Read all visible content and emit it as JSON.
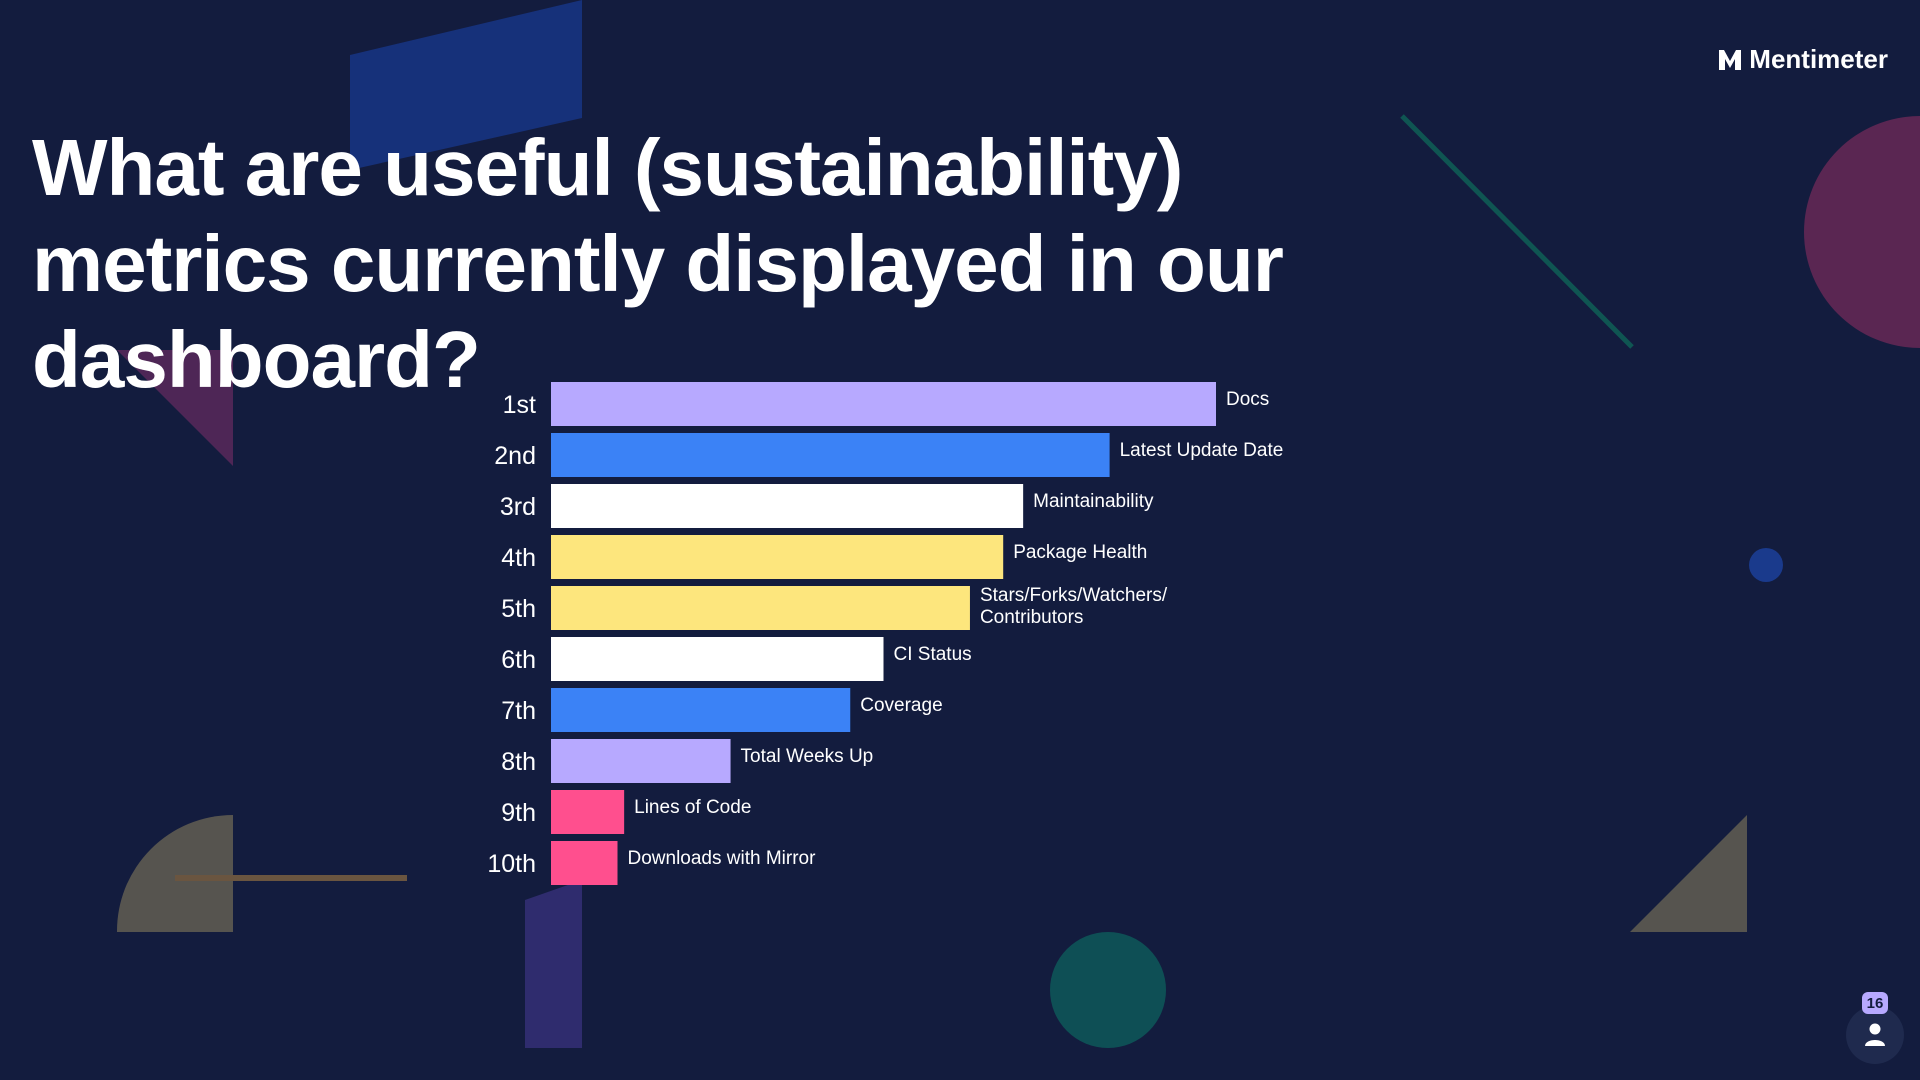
{
  "brand": {
    "name": "Mentimeter",
    "icon": "mentimeter-logo-icon"
  },
  "slide": {
    "title": "What are useful (sustainability) metrics currently displayed in our dashboard?"
  },
  "participants": {
    "count": "16",
    "icon": "person-icon"
  },
  "colors": {
    "background": "#131c3e",
    "lavender": "#b7a9ff",
    "blue": "#3b82f6",
    "white": "#ffffff",
    "yellow": "#fde67d",
    "pink": "#ff4f8e"
  },
  "chart_data": {
    "type": "bar",
    "orientation": "horizontal",
    "title": "",
    "xlabel": "",
    "ylabel": "",
    "xlim": [
      0,
      100
    ],
    "grid": false,
    "categories": [
      "1st",
      "2nd",
      "3rd",
      "4th",
      "5th",
      "6th",
      "7th",
      "8th",
      "9th",
      "10th"
    ],
    "series": [
      {
        "labels": [
          "Docs",
          "Latest Update Date",
          "Maintainability",
          "Package Health",
          "Stars/Forks/Watchers/ Contributors",
          "CI Status",
          "Coverage",
          "Total Weeks Up",
          "Lines of Code",
          "Downloads with Mirror"
        ],
        "values": [
          100,
          84,
          71,
          68,
          63,
          50,
          45,
          27,
          11,
          10
        ],
        "colors": [
          "#b7a9ff",
          "#3b82f6",
          "#ffffff",
          "#fde67d",
          "#fde67d",
          "#ffffff",
          "#3b82f6",
          "#b7a9ff",
          "#ff4f8e",
          "#ff4f8e"
        ]
      }
    ]
  }
}
